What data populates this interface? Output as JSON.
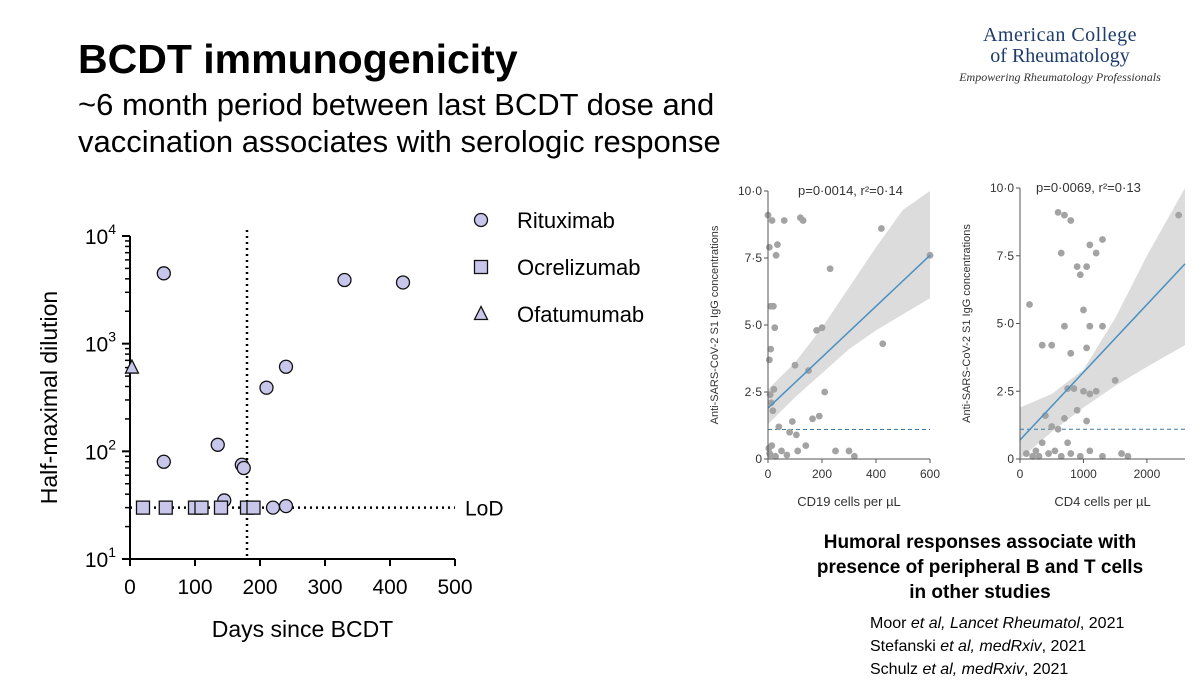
{
  "slide": {
    "title": "BCDT immunogenicity",
    "subtitle_line1": "~6 month period between last BCDT dose and",
    "subtitle_line2": "vaccination associates with serologic response",
    "logo": {
      "line1": "American College",
      "line2": "of Rheumatology",
      "line3": "Empowering Rheumatology Professionals"
    },
    "caption": [
      "Humoral responses associate with",
      "presence of peripheral B and T cells",
      "in other studies"
    ],
    "references": [
      {
        "author": "Moor",
        "etal": " et al",
        "journal": ", Lancet Rheumatol",
        "year": ", 2021"
      },
      {
        "author": "Stefanski",
        "etal": " et al",
        "journal": ", medRxiv",
        "year": ", 2021"
      },
      {
        "author": "Schulz",
        "etal": " et al",
        "journal": ", medRxiv",
        "year": ", 2021"
      }
    ]
  },
  "chart_data": [
    {
      "type": "scatter",
      "xlabel": "Days since BCDT",
      "ylabel": "Half-maximal dilution",
      "xlim": [
        0,
        500
      ],
      "xticks": [
        "0",
        "100",
        "200",
        "300",
        "400",
        "500"
      ],
      "ylim": [
        10,
        10000
      ],
      "yscale": "log",
      "yticks": [
        {
          "base": "10",
          "exp": "1"
        },
        {
          "base": "10",
          "exp": "2"
        },
        {
          "base": "10",
          "exp": "3"
        },
        {
          "base": "10",
          "exp": "4"
        }
      ],
      "vline_x": 180,
      "lod_y": 30,
      "lod_label": "LoD",
      "marker_color": "#c9c6ec",
      "legend_position": "top-right",
      "series": [
        {
          "name": "Rituximab",
          "marker": "circle",
          "points": [
            [
              52,
              4500
            ],
            [
              52,
              80
            ],
            [
              135,
              115
            ],
            [
              145,
              35
            ],
            [
              172,
              75
            ],
            [
              175,
              70
            ],
            [
              210,
              390
            ],
            [
              240,
              610
            ],
            [
              330,
              3900
            ],
            [
              420,
              3700
            ],
            [
              110,
              30
            ],
            [
              220,
              30
            ],
            [
              240,
              31
            ]
          ]
        },
        {
          "name": "Ocrelizumab",
          "marker": "square",
          "points": [
            [
              20,
              30
            ],
            [
              55,
              30
            ],
            [
              100,
              30
            ],
            [
              110,
              30
            ],
            [
              140,
              30
            ],
            [
              180,
              30
            ],
            [
              190,
              30
            ]
          ]
        },
        {
          "name": "Ofatumumab",
          "marker": "triangle",
          "points": [
            [
              3,
              600
            ]
          ]
        }
      ]
    },
    {
      "type": "scatter",
      "annotation": "p=0·0014, r²=0·14",
      "xlabel": "CD19 cells per µL",
      "ylabel": "Anti-SARS-CoV-2 S1 IgG concentrations",
      "xlim": [
        0,
        600
      ],
      "xticks": [
        "0",
        "200",
        "400",
        "600"
      ],
      "ylim": [
        0,
        10
      ],
      "yticks": [
        "0",
        "2·5",
        "5·0",
        "7·5",
        "10·0"
      ],
      "threshold_y": 1.1,
      "fit_line": [
        [
          0,
          1.9
        ],
        [
          600,
          7.6
        ]
      ],
      "band_upper": [
        [
          0,
          2.6
        ],
        [
          100,
          3.6
        ],
        [
          200,
          4.9
        ],
        [
          300,
          6.4
        ],
        [
          400,
          7.9
        ],
        [
          500,
          9.3
        ],
        [
          600,
          10
        ]
      ],
      "band_lower": [
        [
          0,
          1.3
        ],
        [
          100,
          2.3
        ],
        [
          200,
          3.2
        ],
        [
          300,
          4.1
        ],
        [
          400,
          4.8
        ],
        [
          500,
          5.4
        ],
        [
          600,
          6.0
        ]
      ],
      "line_color": "#4a90c0",
      "points": [
        [
          0,
          9.1
        ],
        [
          5,
          7.9
        ],
        [
          10,
          5.7
        ],
        [
          15,
          8.9
        ],
        [
          20,
          5.7
        ],
        [
          25,
          4.9
        ],
        [
          30,
          7.6
        ],
        [
          35,
          8.0
        ],
        [
          10,
          4.1
        ],
        [
          5,
          3.7
        ],
        [
          8,
          2.4
        ],
        [
          12,
          2.1
        ],
        [
          18,
          1.8
        ],
        [
          22,
          2.6
        ],
        [
          3,
          0.4
        ],
        [
          6,
          0.2
        ],
        [
          9,
          0.15
        ],
        [
          14,
          0.5
        ],
        [
          28,
          0.1
        ],
        [
          50,
          0.3
        ],
        [
          60,
          8.9
        ],
        [
          80,
          1.0
        ],
        [
          90,
          1.4
        ],
        [
          100,
          3.5
        ],
        [
          110,
          0.3
        ],
        [
          120,
          9.0
        ],
        [
          150,
          3.3
        ],
        [
          200,
          4.9
        ],
        [
          180,
          4.8
        ],
        [
          230,
          7.1
        ],
        [
          165,
          1.5
        ],
        [
          210,
          2.5
        ],
        [
          250,
          0.3
        ],
        [
          300,
          0.3
        ],
        [
          320,
          0.1
        ],
        [
          420,
          8.6
        ],
        [
          425,
          4.3
        ],
        [
          600,
          7.6
        ],
        [
          140,
          0.5
        ],
        [
          190,
          1.6
        ],
        [
          70,
          0.15
        ],
        [
          105,
          0.9
        ],
        [
          130,
          8.9
        ],
        [
          40,
          1.2
        ]
      ]
    },
    {
      "type": "scatter",
      "annotation": "p=0·0069, r²=0·13",
      "xlabel": "CD4 cells per µL",
      "ylabel": "Anti-SARS-CoV-2 S1 IgG concentrations",
      "xlim": [
        0,
        2600
      ],
      "xticks": [
        "0",
        "1000",
        "2000"
      ],
      "ylim": [
        0,
        10
      ],
      "yticks": [
        "0",
        "2·5",
        "5·0",
        "7·5",
        "10·0"
      ],
      "threshold_y": 1.1,
      "fit_line": [
        [
          0,
          0.7
        ],
        [
          2600,
          7.2
        ]
      ],
      "band_upper": [
        [
          0,
          1.9
        ],
        [
          500,
          2.4
        ],
        [
          1000,
          3.3
        ],
        [
          1500,
          5.2
        ],
        [
          2000,
          7.5
        ],
        [
          2600,
          10
        ]
      ],
      "band_lower": [
        [
          0,
          -0.5
        ],
        [
          500,
          1.0
        ],
        [
          1000,
          1.9
        ],
        [
          1500,
          2.7
        ],
        [
          2000,
          3.4
        ],
        [
          2600,
          4.2
        ]
      ],
      "line_color": "#4a90c0",
      "points": [
        [
          2500,
          9.0
        ],
        [
          600,
          9.1
        ],
        [
          700,
          9.0
        ],
        [
          800,
          8.8
        ],
        [
          1100,
          7.9
        ],
        [
          1300,
          8.1
        ],
        [
          650,
          7.6
        ],
        [
          900,
          7.1
        ],
        [
          950,
          6.8
        ],
        [
          1200,
          7.6
        ],
        [
          1050,
          7.1
        ],
        [
          150,
          5.7
        ],
        [
          700,
          4.9
        ],
        [
          1000,
          5.5
        ],
        [
          1100,
          4.9
        ],
        [
          1300,
          4.9
        ],
        [
          800,
          3.9
        ],
        [
          1050,
          4.1
        ],
        [
          350,
          4.2
        ],
        [
          500,
          4.2
        ],
        [
          750,
          2.6
        ],
        [
          850,
          2.6
        ],
        [
          1000,
          2.5
        ],
        [
          1100,
          2.4
        ],
        [
          1200,
          2.5
        ],
        [
          1500,
          2.9
        ],
        [
          900,
          1.8
        ],
        [
          700,
          1.5
        ],
        [
          500,
          1.2
        ],
        [
          350,
          0.6
        ],
        [
          400,
          1.6
        ],
        [
          100,
          0.2
        ],
        [
          200,
          0.1
        ],
        [
          250,
          0.3
        ],
        [
          300,
          0.1
        ],
        [
          450,
          0.2
        ],
        [
          550,
          0.3
        ],
        [
          650,
          0.1
        ],
        [
          800,
          0.2
        ],
        [
          950,
          0.1
        ],
        [
          1100,
          0.3
        ],
        [
          1300,
          0.1
        ],
        [
          1600,
          0.2
        ],
        [
          1700,
          0.1
        ],
        [
          600,
          1.1
        ],
        [
          1050,
          1.4
        ],
        [
          750,
          0.6
        ]
      ]
    }
  ]
}
